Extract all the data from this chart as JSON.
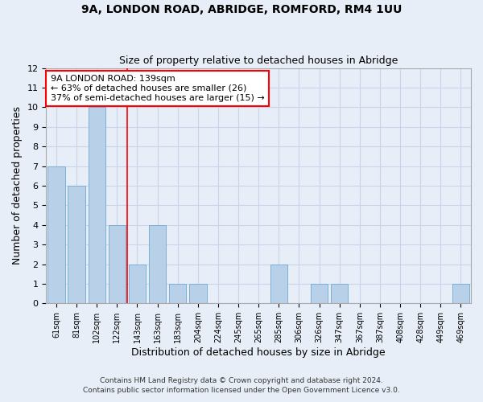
{
  "title1": "9A, LONDON ROAD, ABRIDGE, ROMFORD, RM4 1UU",
  "title2": "Size of property relative to detached houses in Abridge",
  "xlabel": "Distribution of detached houses by size in Abridge",
  "ylabel": "Number of detached properties",
  "categories": [
    "61sqm",
    "81sqm",
    "102sqm",
    "122sqm",
    "143sqm",
    "163sqm",
    "183sqm",
    "204sqm",
    "224sqm",
    "245sqm",
    "265sqm",
    "285sqm",
    "306sqm",
    "326sqm",
    "347sqm",
    "367sqm",
    "387sqm",
    "408sqm",
    "428sqm",
    "449sqm",
    "469sqm"
  ],
  "values": [
    7,
    6,
    10,
    4,
    2,
    4,
    1,
    1,
    0,
    0,
    0,
    2,
    0,
    1,
    1,
    0,
    0,
    0,
    0,
    0,
    1
  ],
  "bar_color": "#b8d0e8",
  "bar_edge_color": "#7aafd4",
  "red_line_x": 3.5,
  "annotation_text": "9A LONDON ROAD: 139sqm\n← 63% of detached houses are smaller (26)\n37% of semi-detached houses are larger (15) →",
  "annotation_box_color": "white",
  "annotation_box_edge_color": "red",
  "ylim": [
    0,
    12
  ],
  "yticks": [
    0,
    1,
    2,
    3,
    4,
    5,
    6,
    7,
    8,
    9,
    10,
    11,
    12
  ],
  "footer1": "Contains HM Land Registry data © Crown copyright and database right 2024.",
  "footer2": "Contains public sector information licensed under the Open Government Licence v3.0.",
  "bg_color": "#e8eef8",
  "plot_bg_color": "#e8eef8",
  "grid_color": "#c8d4e8"
}
